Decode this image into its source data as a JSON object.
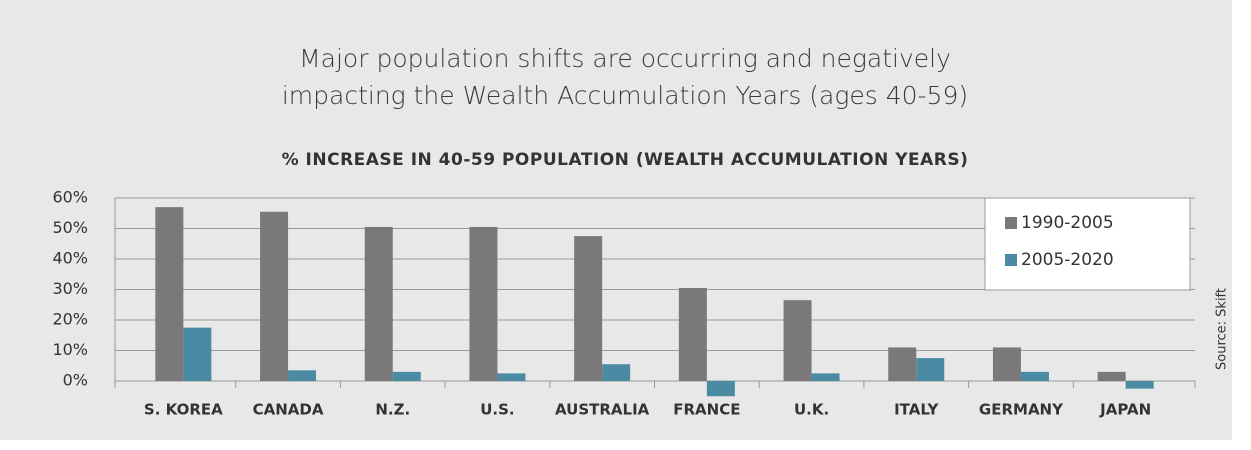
{
  "chart_data": {
    "type": "bar",
    "title": [
      "Major population shifts are occurring and negatively",
      "impacting the Wealth Accumulation Years (ages 40-59)"
    ],
    "subtitle": "% INCREASE IN 40-59 POPULATION (WEALTH ACCUMULATION YEARS)",
    "source": "Source: Skift",
    "categories": [
      "S. KOREA",
      "CANADA",
      "N.Z.",
      "U.S.",
      "AUSTRALIA",
      "FRANCE",
      "U.K.",
      "ITALY",
      "GERMANY",
      "JAPAN"
    ],
    "series": [
      {
        "name": "1990-2005",
        "color": "#7a7878",
        "values": [
          57,
          55.5,
          50.5,
          50.5,
          47.5,
          30.5,
          26.5,
          11,
          11,
          3
        ]
      },
      {
        "name": "2005-2020",
        "color": "#4a8aa2",
        "values": [
          17.5,
          3.5,
          3,
          2.5,
          5.5,
          -5,
          2.5,
          7.5,
          3,
          -2.5
        ]
      }
    ],
    "ylim": [
      0,
      60
    ],
    "yticks": [
      {
        "value": 0,
        "label": "0%"
      },
      {
        "value": 10,
        "label": "10%"
      },
      {
        "value": 20,
        "label": "20%"
      },
      {
        "value": 30,
        "label": "30%"
      },
      {
        "value": 40,
        "label": "40%"
      },
      {
        "value": 50,
        "label": "50%"
      },
      {
        "value": 60,
        "label": "60%"
      }
    ],
    "grid": true,
    "legend": "top-right"
  }
}
